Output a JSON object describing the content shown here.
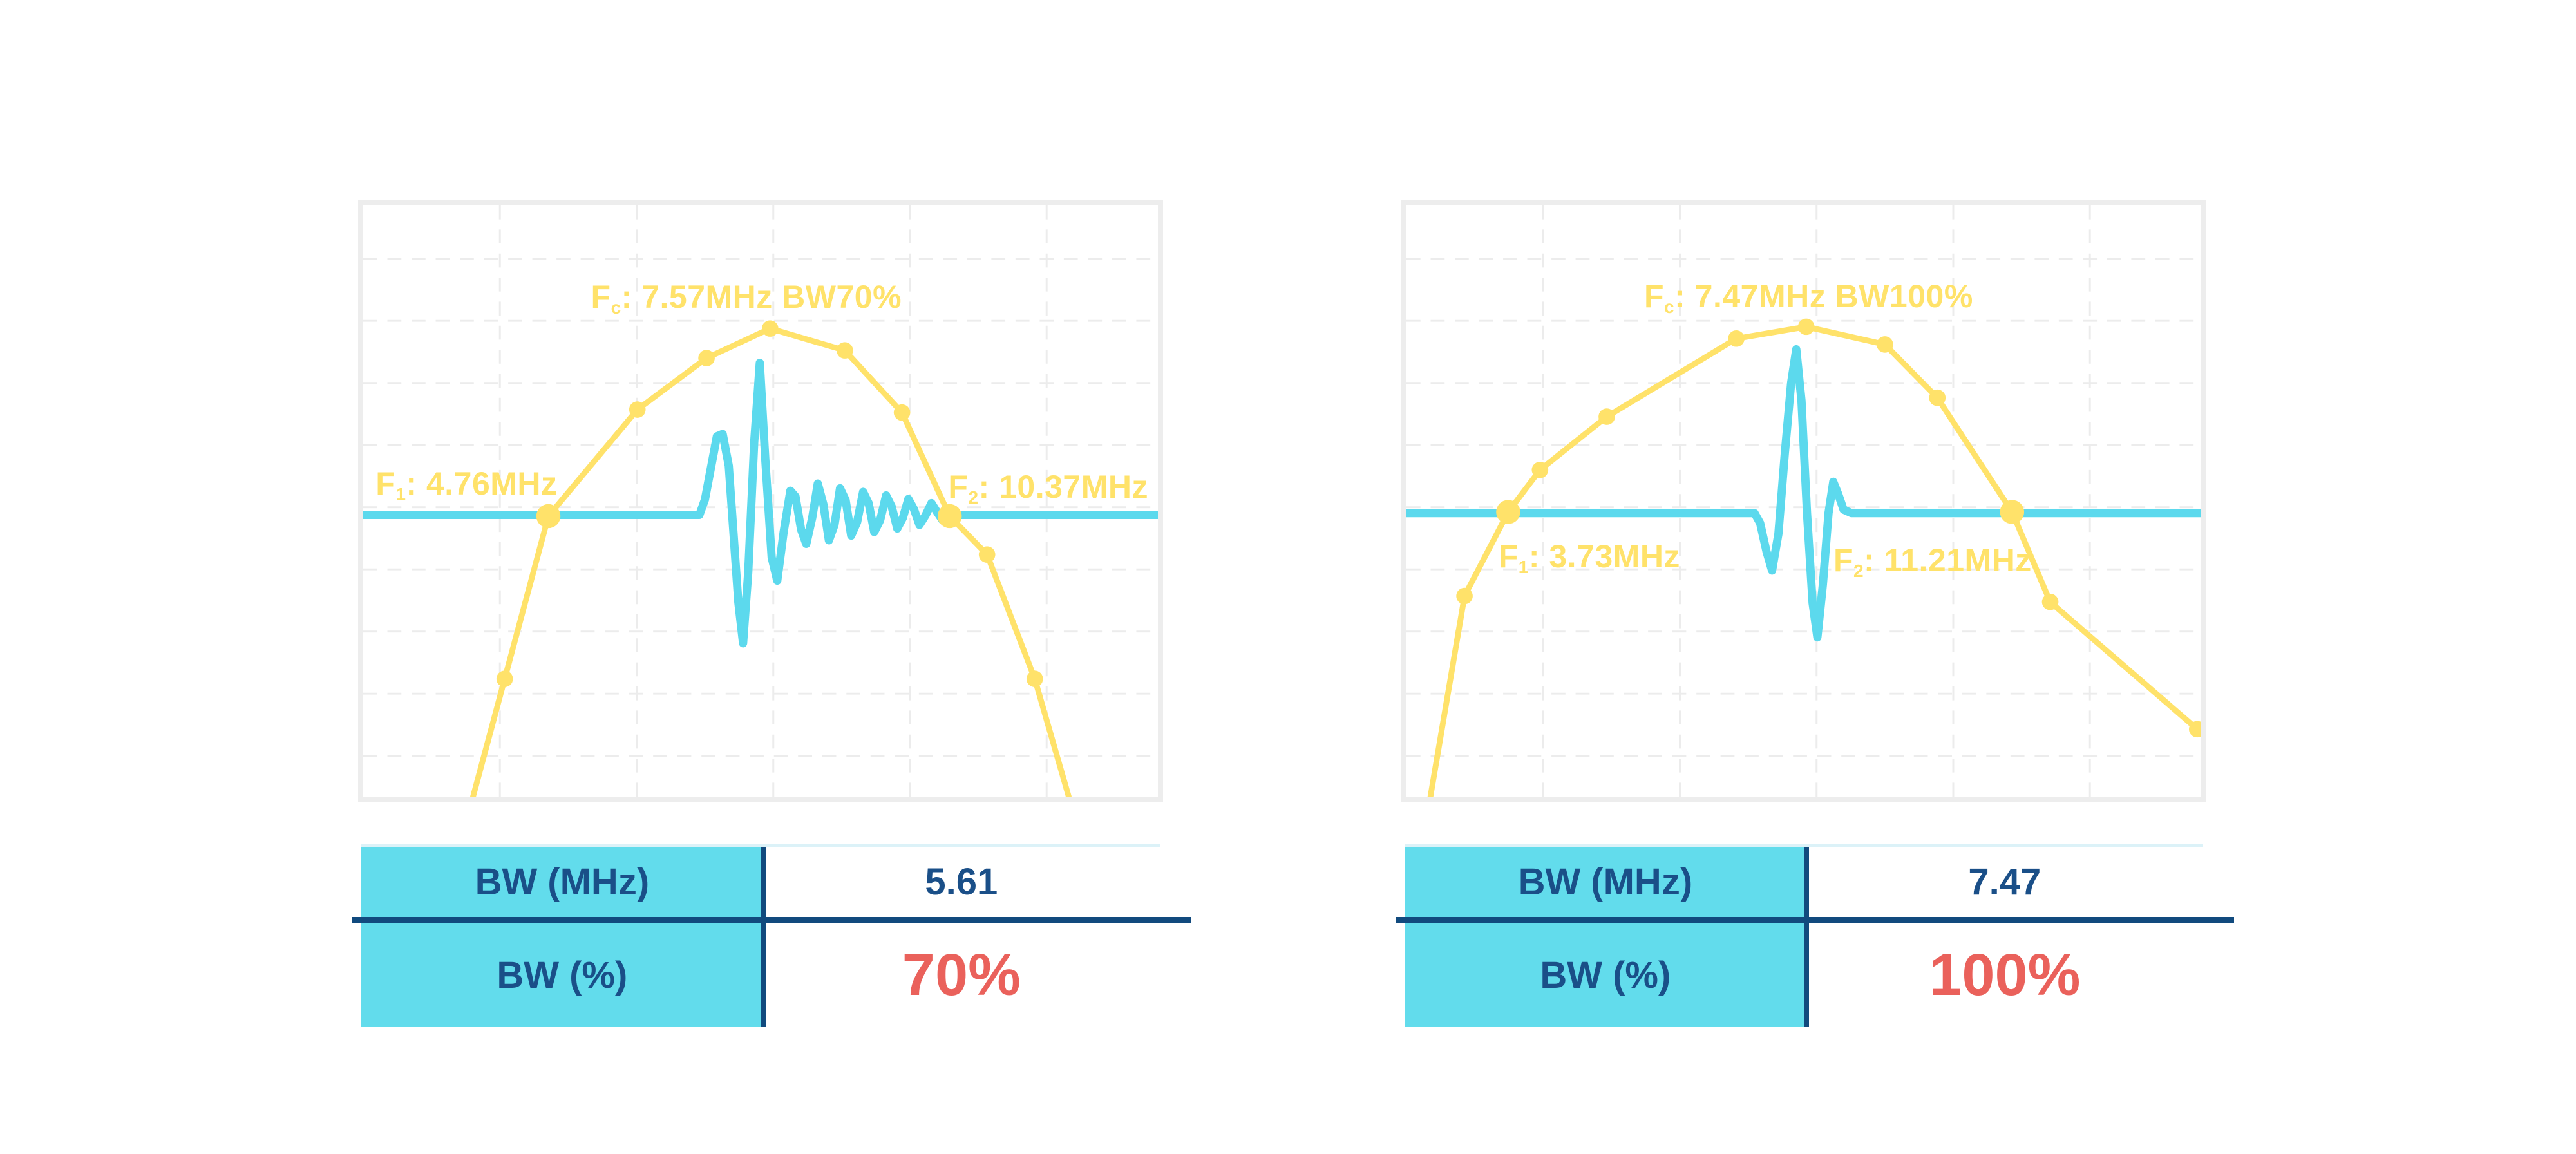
{
  "colors": {
    "yellow": "#FFE26A",
    "cyan": "#5CD9ED",
    "table_header_bg": "#62DCEC",
    "navy_text": "#1A4F88",
    "navy_line": "#114A7E",
    "red": "#EA615B",
    "frame": "#EDEDED",
    "grid": "#ECECEC",
    "pale_top_line": "#DCF2F8"
  },
  "charts": [
    {
      "title": {
        "main": "F",
        "sub": "c",
        "rest": ": 7.57MHz BW70%"
      },
      "f1": {
        "main": "F",
        "sub": "1",
        "rest": ": 4.76MHz"
      },
      "f2": {
        "main": "F",
        "sub": "2",
        "rest": ": 10.37MHz"
      }
    },
    {
      "title": {
        "main": "F",
        "sub": "c",
        "rest": ": 7.47MHz BW100%"
      },
      "f1": {
        "main": "F",
        "sub": "1",
        "rest": ": 3.73MHz"
      },
      "f2": {
        "main": "F",
        "sub": "2",
        "rest": ": 11.21MHz"
      }
    }
  ],
  "tables": [
    {
      "rows": [
        {
          "label": "BW (MHz)",
          "value": "5.61"
        },
        {
          "label": "BW (%)",
          "value": "70%"
        }
      ]
    },
    {
      "rows": [
        {
          "label": "BW (MHz)",
          "value": "7.47"
        },
        {
          "label": "BW (%)",
          "value": "100%"
        }
      ]
    }
  ],
  "chart_data": [
    {
      "type": "line",
      "title": "Fc: 7.57MHz BW70%",
      "fc_mhz": 7.57,
      "f1_mhz": 4.76,
      "f2_mhz": 10.37,
      "bw_mhz": 5.61,
      "bw_percent": 70,
      "axes_hidden": true,
      "legend": "none",
      "grid": "dashed light gray",
      "baseline_y": 0.523,
      "series_names": [
        "spectrum (yellow)",
        "pulse (cyan)"
      ],
      "spectrum": {
        "points": [
          [
            0.138,
            1.0
          ],
          [
            0.178,
            0.8
          ],
          [
            0.233,
            0.525
          ],
          [
            0.345,
            0.345
          ],
          [
            0.432,
            0.258
          ],
          [
            0.512,
            0.208
          ],
          [
            0.606,
            0.245
          ],
          [
            0.678,
            0.35
          ],
          [
            0.738,
            0.525
          ],
          [
            0.785,
            0.59
          ],
          [
            0.845,
            0.8
          ],
          [
            0.888,
            1.0
          ]
        ],
        "dots": [
          [
            0.178,
            0.8
          ],
          [
            0.345,
            0.345
          ],
          [
            0.432,
            0.258
          ],
          [
            0.512,
            0.208
          ],
          [
            0.606,
            0.245
          ],
          [
            0.678,
            0.35
          ],
          [
            0.785,
            0.59
          ],
          [
            0.845,
            0.8
          ]
        ],
        "big_dots": [
          [
            0.233,
            0.525
          ],
          [
            0.738,
            0.525
          ]
        ]
      },
      "pulse": {
        "points": [
          [
            0,
            0.523
          ],
          [
            0.423,
            0.523
          ],
          [
            0.43,
            0.497
          ],
          [
            0.445,
            0.39
          ],
          [
            0.4523,
            0.386
          ],
          [
            0.46,
            0.44
          ],
          [
            0.472,
            0.67
          ],
          [
            0.478,
            0.74
          ],
          [
            0.4845,
            0.62
          ],
          [
            0.492,
            0.4
          ],
          [
            0.499,
            0.266
          ],
          [
            0.506,
            0.43
          ],
          [
            0.514,
            0.595
          ],
          [
            0.521,
            0.634
          ],
          [
            0.529,
            0.552
          ],
          [
            0.5375,
            0.482
          ],
          [
            0.544,
            0.492
          ],
          [
            0.551,
            0.548
          ],
          [
            0.5575,
            0.572
          ],
          [
            0.565,
            0.528
          ],
          [
            0.572,
            0.47
          ],
          [
            0.579,
            0.505
          ],
          [
            0.586,
            0.566
          ],
          [
            0.593,
            0.54
          ],
          [
            0.6,
            0.478
          ],
          [
            0.607,
            0.498
          ],
          [
            0.614,
            0.558
          ],
          [
            0.6215,
            0.535
          ],
          [
            0.629,
            0.484
          ],
          [
            0.636,
            0.503
          ],
          [
            0.643,
            0.552
          ],
          [
            0.6505,
            0.532
          ],
          [
            0.658,
            0.49
          ],
          [
            0.665,
            0.509
          ],
          [
            0.672,
            0.546
          ],
          [
            0.679,
            0.528
          ],
          [
            0.686,
            0.496
          ],
          [
            0.693,
            0.513
          ],
          [
            0.7,
            0.54
          ],
          [
            0.7075,
            0.524
          ],
          [
            0.715,
            0.503
          ],
          [
            0.722,
            0.518
          ],
          [
            0.729,
            0.532
          ],
          [
            0.738,
            0.523
          ],
          [
            1,
            0.523
          ]
        ]
      }
    },
    {
      "type": "line",
      "title": "Fc: 7.47MHz BW100%",
      "fc_mhz": 7.47,
      "f1_mhz": 3.73,
      "f2_mhz": 11.21,
      "bw_mhz": 7.47,
      "bw_percent": 100,
      "axes_hidden": true,
      "legend": "none",
      "grid": "dashed light gray",
      "baseline_y": 0.52,
      "series_names": [
        "spectrum (yellow)",
        "pulse (cyan)"
      ],
      "spectrum": {
        "points": [
          [
            0.03,
            1.0
          ],
          [
            0.073,
            0.66
          ],
          [
            0.128,
            0.518
          ],
          [
            0.168,
            0.447
          ],
          [
            0.252,
            0.357
          ],
          [
            0.415,
            0.225
          ],
          [
            0.503,
            0.205
          ],
          [
            0.602,
            0.235
          ],
          [
            0.668,
            0.325
          ],
          [
            0.762,
            0.518
          ],
          [
            0.81,
            0.67
          ],
          [
            0.995,
            0.885
          ]
        ],
        "dots": [
          [
            0.073,
            0.66
          ],
          [
            0.168,
            0.447
          ],
          [
            0.252,
            0.357
          ],
          [
            0.415,
            0.225
          ],
          [
            0.503,
            0.205
          ],
          [
            0.602,
            0.235
          ],
          [
            0.668,
            0.325
          ],
          [
            0.81,
            0.67
          ],
          [
            0.995,
            0.885
          ]
        ],
        "big_dots": [
          [
            0.128,
            0.518
          ],
          [
            0.762,
            0.518
          ]
        ]
      },
      "pulse": {
        "points": [
          [
            0,
            0.52
          ],
          [
            0.438,
            0.52
          ],
          [
            0.445,
            0.537
          ],
          [
            0.453,
            0.585
          ],
          [
            0.46,
            0.617
          ],
          [
            0.468,
            0.555
          ],
          [
            0.476,
            0.42
          ],
          [
            0.484,
            0.3
          ],
          [
            0.4905,
            0.243
          ],
          [
            0.497,
            0.33
          ],
          [
            0.504,
            0.52
          ],
          [
            0.511,
            0.672
          ],
          [
            0.517,
            0.73
          ],
          [
            0.524,
            0.64
          ],
          [
            0.531,
            0.52
          ],
          [
            0.537,
            0.467
          ],
          [
            0.543,
            0.487
          ],
          [
            0.55,
            0.514
          ],
          [
            0.56,
            0.52
          ],
          [
            1,
            0.52
          ]
        ]
      }
    }
  ]
}
